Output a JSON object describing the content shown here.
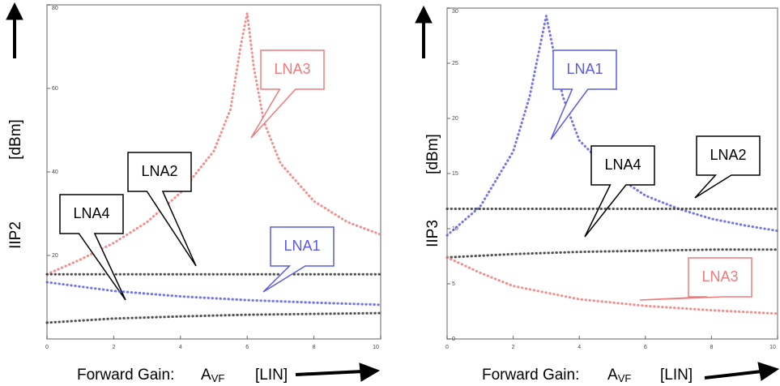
{
  "chart_data": [
    {
      "type": "line",
      "y_label": "IIP2",
      "y_unit": "[dBm]",
      "x_label": "Forward Gain:",
      "x_symbol": "A",
      "x_symbol_sub": "VF",
      "x_unit": "[LIN]",
      "xlim": [
        0,
        10
      ],
      "xticks": [
        0,
        2,
        4,
        6,
        8,
        10
      ],
      "ylim": [
        0,
        80
      ],
      "yticks": [
        20,
        40,
        60,
        80
      ],
      "series": [
        {
          "name": "LNA3",
          "color": "#f07a7a",
          "x": [
            0,
            1,
            2,
            3,
            4,
            5,
            5.5,
            5.8,
            6,
            6.2,
            6.5,
            7,
            8,
            9,
            10
          ],
          "values": [
            15.5,
            19,
            23,
            28,
            35,
            45,
            55,
            70,
            78,
            65,
            52,
            42,
            33,
            28,
            25
          ]
        },
        {
          "name": "LNA2",
          "color": "#333333",
          "x": [
            0,
            2,
            4,
            6,
            8,
            10
          ],
          "values": [
            15.5,
            15.5,
            15.5,
            15.5,
            15.5,
            15.5
          ]
        },
        {
          "name": "LNA4",
          "color": "#333333",
          "x": [
            0,
            2,
            4,
            6,
            8,
            10
          ],
          "values": [
            3.9,
            4.9,
            5.4,
            5.8,
            6.0,
            6.2
          ]
        },
        {
          "name": "LNA1",
          "color": "#5a5ae6",
          "x": [
            0,
            2,
            4,
            6,
            8,
            10
          ],
          "values": [
            13.6,
            11.5,
            10.2,
            9.3,
            8.7,
            8.2
          ]
        }
      ]
    },
    {
      "type": "line",
      "y_label": "IIP3",
      "y_unit": "[dBm]",
      "x_label": "Forward Gain:",
      "x_symbol": "A",
      "x_symbol_sub": "VF",
      "x_unit": "[LIN]",
      "xlim": [
        0,
        10
      ],
      "xticks": [
        0,
        2,
        4,
        6,
        8,
        10
      ],
      "ylim": [
        0,
        30
      ],
      "yticks": [
        0,
        5,
        10,
        15,
        20,
        25,
        30
      ],
      "series": [
        {
          "name": "LNA1",
          "color": "#5a5ae6",
          "x": [
            0,
            1,
            2,
            2.5,
            3,
            3.5,
            4,
            5,
            6,
            7,
            8,
            9,
            10
          ],
          "values": [
            9.4,
            12,
            17,
            22,
            29.3,
            22,
            18,
            15,
            13,
            11.8,
            10.9,
            10.3,
            9.8
          ]
        },
        {
          "name": "LNA4",
          "color": "#333333",
          "x": [
            0,
            2,
            4,
            6,
            8,
            10
          ],
          "values": [
            7.4,
            7.7,
            7.9,
            8.0,
            8.1,
            8.1
          ]
        },
        {
          "name": "LNA2",
          "color": "#333333",
          "x": [
            0,
            2,
            4,
            6,
            8,
            10
          ],
          "values": [
            11.8,
            11.8,
            11.8,
            11.8,
            11.8,
            11.8
          ]
        },
        {
          "name": "LNA3",
          "color": "#f07a7a",
          "x": [
            0,
            1,
            2,
            4,
            6,
            8,
            10
          ],
          "values": [
            7.4,
            6.0,
            4.8,
            3.6,
            3.0,
            2.6,
            2.3
          ]
        }
      ]
    }
  ]
}
